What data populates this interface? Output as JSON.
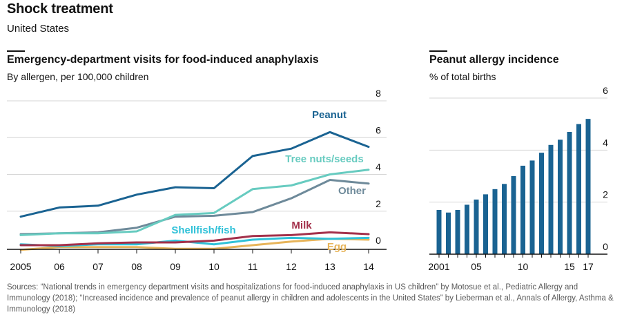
{
  "header": {
    "title": "Shock treatment",
    "subtitle": "United States"
  },
  "left_panel": {
    "title": "Emergency-department visits for food-induced anaphylaxis",
    "subtitle": "By allergen, per 100,000 children"
  },
  "right_panel": {
    "title": "Peanut allergy incidence",
    "subtitle": "% of total births"
  },
  "footer": {
    "sources": "Sources: “National trends in emergency department visits and hospitalizations for food-induced anaphylaxis in US children” by Motosue et al., Pediatric Allergy and Immunology (2018); “Increased incidence and prevalence of peanut allergy in children and adolescents in the United States” by Lieberman et al., Annals of Allergy, Asthma & Immunology (2018)"
  },
  "colors": {
    "Peanut": "#1a6392",
    "Tree nuts/seeds": "#67cbc0",
    "Other": "#6e8a9a",
    "Milk": "#a3304a",
    "Shellfish/fish": "#2fc1d8",
    "Egg": "#e7b45a",
    "bars": "#1a6392",
    "grid": "#d6d6d6",
    "axis": "#121212"
  },
  "chart_data": [
    {
      "type": "line",
      "title": "Emergency-department visits for food-induced anaphylaxis",
      "subtitle": "By allergen, per 100,000 children",
      "x": [
        2005,
        2006,
        2007,
        2008,
        2009,
        2010,
        2011,
        2012,
        2013,
        2014
      ],
      "x_tick_labels": [
        "2005",
        "06",
        "07",
        "08",
        "09",
        "10",
        "11",
        "12",
        "13",
        "14"
      ],
      "ylim": [
        0,
        8
      ],
      "y_ticks": [
        0,
        2,
        4,
        6,
        8
      ],
      "y_tick_labels": [
        "0",
        "2",
        "4",
        "6",
        "8"
      ],
      "y_axis_side": "right",
      "grid": true,
      "series": [
        {
          "name": "Peanut",
          "values": [
            1.7,
            2.2,
            2.3,
            2.9,
            3.3,
            3.25,
            5.0,
            5.4,
            6.3,
            5.5
          ]
        },
        {
          "name": "Tree nuts/seeds",
          "values": [
            0.7,
            0.8,
            0.8,
            0.9,
            1.8,
            1.9,
            3.2,
            3.4,
            4.0,
            4.25
          ]
        },
        {
          "name": "Other",
          "values": [
            0.75,
            0.8,
            0.85,
            1.1,
            1.7,
            1.75,
            1.95,
            2.7,
            3.7,
            3.5
          ]
        },
        {
          "name": "Milk",
          "values": [
            0.15,
            0.15,
            0.25,
            0.3,
            0.3,
            0.4,
            0.65,
            0.7,
            0.85,
            0.75
          ]
        },
        {
          "name": "Shellfish/fish",
          "values": [
            0.2,
            0.1,
            0.2,
            0.2,
            0.4,
            0.2,
            0.45,
            0.55,
            0.5,
            0.55
          ]
        },
        {
          "name": "Egg",
          "values": [
            -0.1,
            0.05,
            0.05,
            0.05,
            -0.05,
            -0.05,
            0.15,
            0.35,
            0.5,
            0.45
          ]
        }
      ]
    },
    {
      "type": "bar",
      "title": "Peanut allergy incidence",
      "subtitle": "% of total births",
      "categories": [
        2001,
        2002,
        2003,
        2004,
        2005,
        2006,
        2007,
        2008,
        2009,
        2010,
        2011,
        2012,
        2013,
        2014,
        2015,
        2016,
        2017
      ],
      "x_tick_labels": [
        {
          "value": 2001,
          "label": "2001"
        },
        {
          "value": 2005,
          "label": "05"
        },
        {
          "value": 2010,
          "label": "10"
        },
        {
          "value": 2015,
          "label": "15"
        },
        {
          "value": 2017,
          "label": "17"
        }
      ],
      "values": [
        1.7,
        1.6,
        1.7,
        1.9,
        2.1,
        2.3,
        2.5,
        2.7,
        3.0,
        3.4,
        3.6,
        3.9,
        4.2,
        4.4,
        4.7,
        5.0,
        5.2
      ],
      "ylim": [
        0,
        6
      ],
      "y_ticks": [
        0,
        2,
        4,
        6
      ],
      "y_tick_labels": [
        "0",
        "2",
        "4",
        "6"
      ],
      "y_axis_side": "right",
      "grid": true
    }
  ]
}
